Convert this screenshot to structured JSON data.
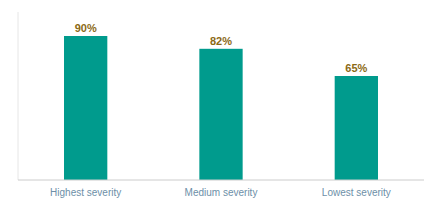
{
  "chart_data": {
    "type": "bar",
    "categories": [
      "Highest severity",
      "Medium severity",
      "Lowest severity"
    ],
    "values": [
      90,
      82,
      65
    ],
    "value_labels": [
      "90%",
      "82%",
      "65%"
    ],
    "color": "#009B8D",
    "ylim": [
      0,
      105
    ],
    "data_labels": true,
    "tick_labels": "x",
    "grid": false
  }
}
